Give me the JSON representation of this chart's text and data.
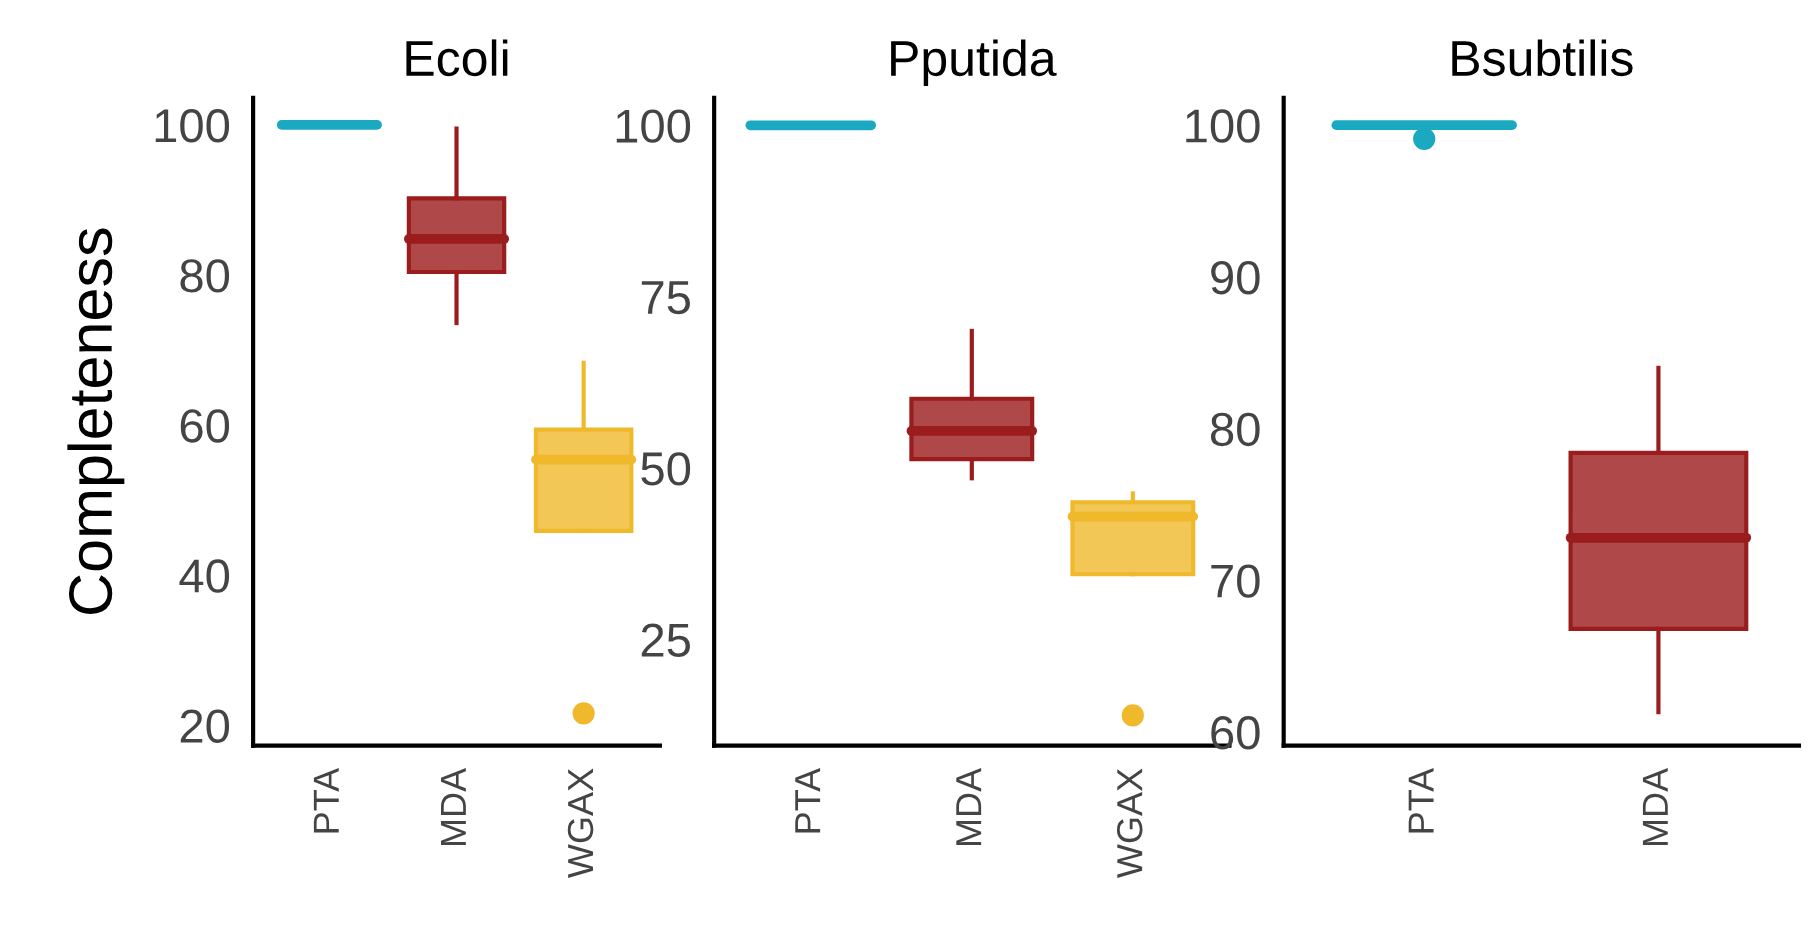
{
  "chart_data": [
    {
      "type": "box",
      "title": "Ecoli",
      "ylabel": "Completeness",
      "categories": [
        "PTA",
        "MDA",
        "WGAX"
      ],
      "colors": [
        "#1aa9c0",
        "#9b1c1c",
        "#f0b92c"
      ],
      "ylim": [
        17.3,
        103.6
      ],
      "yticks": [
        20,
        40,
        60,
        80,
        100
      ],
      "grid": false,
      "boxes": [
        {
          "low": 100,
          "q1": 100,
          "median": 100,
          "q3": 100,
          "high": 100
        },
        {
          "low": 73.6,
          "q1": 80.4,
          "median": 84.8,
          "q3": 90.2,
          "high": 99.5
        },
        {
          "low": 45.9,
          "q1": 45.9,
          "median": 55.4,
          "q3": 59.4,
          "high": 68.3,
          "outliers": [
            21.6
          ]
        }
      ]
    },
    {
      "type": "box",
      "title": "Pputida",
      "categories": [
        "PTA",
        "MDA",
        "WGAX"
      ],
      "colors": [
        "#1aa9c0",
        "#9b1c1c",
        "#f0b92c"
      ],
      "ylim": [
        9.5,
        104
      ],
      "yticks": [
        25,
        50,
        75,
        100
      ],
      "grid": false,
      "boxes": [
        {
          "low": 100,
          "q1": 100,
          "median": 100,
          "q3": 100,
          "high": 100
        },
        {
          "low": 48.5,
          "q1": 51.3,
          "median": 55.4,
          "q3": 60.1,
          "high": 70.0
        },
        {
          "low": 34.5,
          "q1": 34.5,
          "median": 42.9,
          "q3": 45.0,
          "high": 46.3,
          "outliers": [
            13.9
          ]
        }
      ]
    },
    {
      "type": "box",
      "title": "Bsubtilis",
      "categories": [
        "PTA",
        "MDA"
      ],
      "colors": [
        "#1aa9c0",
        "#9b1c1c"
      ],
      "ylim": [
        59.1,
        101.8
      ],
      "yticks": [
        60,
        70,
        80,
        90,
        100
      ],
      "grid": false,
      "boxes": [
        {
          "low": 100,
          "q1": 100,
          "median": 100,
          "q3": 100,
          "high": 100,
          "outliers": [
            99.1
          ]
        },
        {
          "low": 61.3,
          "q1": 66.8,
          "median": 72.8,
          "q3": 78.4,
          "high": 84.0
        }
      ]
    }
  ]
}
